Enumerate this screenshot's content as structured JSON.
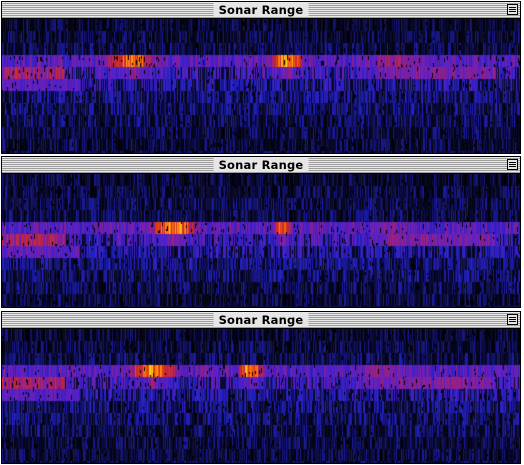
{
  "windows": [
    {
      "title": "Sonar Range",
      "hot_bands": [
        {
          "row": 3,
          "center": 0.25,
          "width": 0.09,
          "peak": 0.85
        },
        {
          "row": 3,
          "center": 0.55,
          "width": 0.05,
          "peak": 0.95
        },
        {
          "row": 3,
          "center": 0.75,
          "width": 0.12,
          "peak": 0.6
        }
      ]
    },
    {
      "title": "Sonar Range",
      "hot_bands": [
        {
          "row": 4,
          "center": 0.33,
          "width": 0.08,
          "peak": 0.9
        },
        {
          "row": 4,
          "center": 0.54,
          "width": 0.03,
          "peak": 0.85
        },
        {
          "row": 4,
          "center": 0.75,
          "width": 0.09,
          "peak": 0.55
        }
      ]
    },
    {
      "title": "Sonar Range",
      "hot_bands": [
        {
          "row": 3,
          "center": 0.29,
          "width": 0.08,
          "peak": 0.92
        },
        {
          "row": 3,
          "center": 0.48,
          "width": 0.04,
          "peak": 0.98
        },
        {
          "row": 3,
          "center": 0.73,
          "width": 0.12,
          "peak": 0.55
        }
      ]
    }
  ],
  "colors": {
    "background": "#000000",
    "title_bar": "#e6e6e6",
    "palette": [
      "#000000",
      "#101050",
      "#2020c0",
      "#5a20c8",
      "#9a2080",
      "#e03010",
      "#ff8a10",
      "#ffe020"
    ]
  }
}
